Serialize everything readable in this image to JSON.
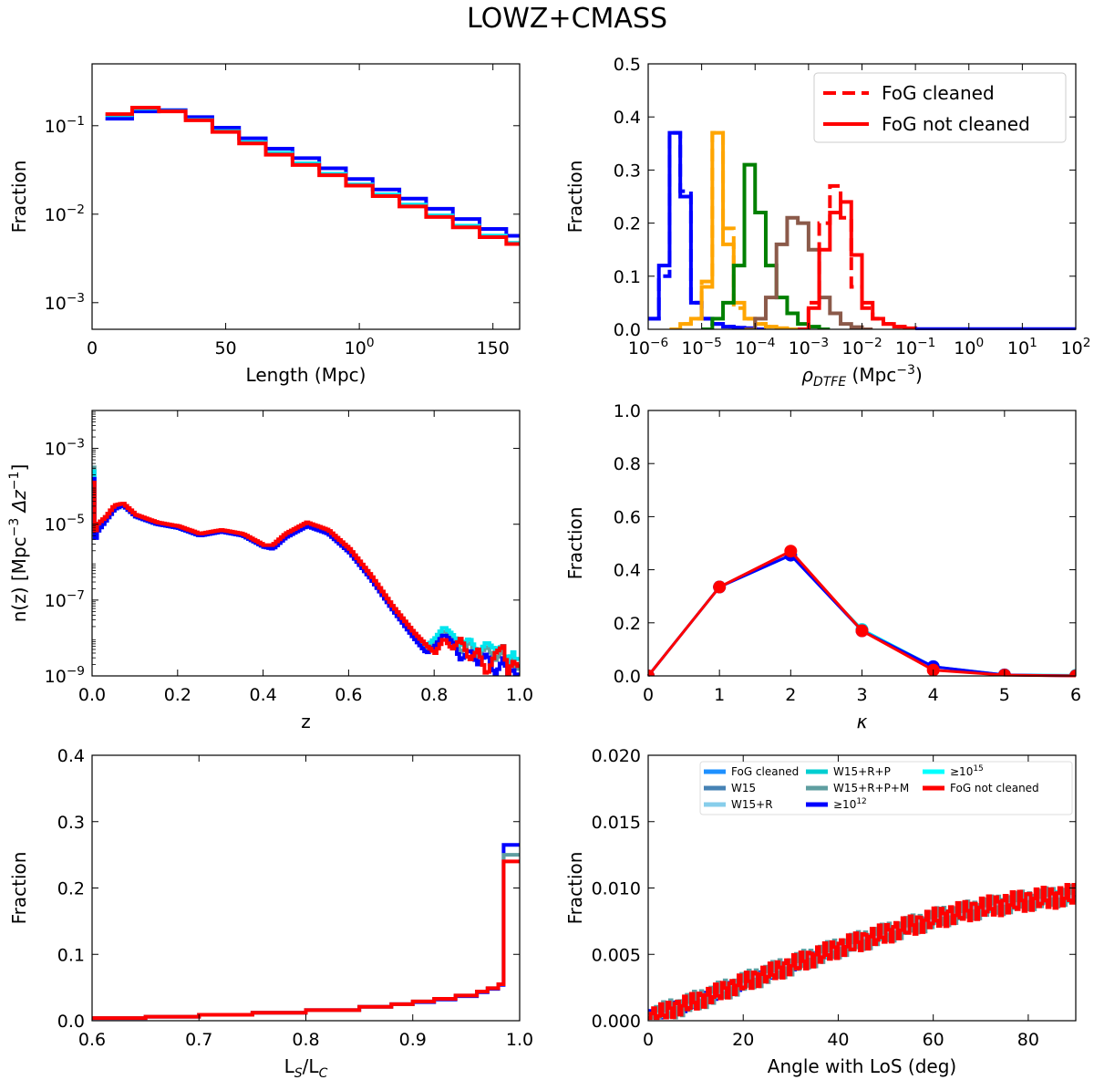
{
  "figure": {
    "title": "LOWZ+CMASS"
  },
  "colors": {
    "red": "#ff0000",
    "blue": "#0000ff",
    "cyan": "#00e5ee",
    "teal": "#5f9ea0",
    "orange": "#ffa500",
    "green": "#008000",
    "brown": "#8b5a4a",
    "fog_cleaned": "#1e90ff",
    "w15": "#4682b4",
    "w15r": "#87ceeb",
    "w15rp": "#00ced1",
    "w15rpm": "#5f9ea0",
    "ge12": "#0000ff",
    "ge15": "#00ffff"
  },
  "chart_data": [
    {
      "id": "length",
      "type": "step",
      "title": "",
      "xlabel": "Length (Mpc)",
      "ylabel": "Fraction",
      "xscale": "linear",
      "yscale": "log",
      "xlim": [
        0,
        160
      ],
      "ylim": [
        0.0005,
        0.5
      ],
      "xticks": [
        0,
        50,
        100,
        150
      ],
      "xticklabels": [
        "0",
        "50",
        "100",
        "150"
      ],
      "yticks": [
        0.001,
        0.01,
        0.1
      ],
      "yticklabels": [
        "10−3",
        "10−2",
        "10−1"
      ],
      "bin_edges": [
        5,
        15,
        25,
        35,
        45,
        55,
        65,
        75,
        85,
        95,
        105,
        115,
        125,
        135,
        145,
        155,
        160
      ],
      "series": [
        {
          "name": "≥10^12",
          "color": "blue",
          "width": 4,
          "values": [
            0.12,
            0.145,
            0.15,
            0.125,
            0.095,
            0.072,
            0.055,
            0.043,
            0.033,
            0.025,
            0.019,
            0.015,
            0.0115,
            0.0088,
            0.0068,
            0.0057
          ]
        },
        {
          "name": "W15+R+P+M",
          "color": "cyan",
          "width": 3,
          "values": [
            0.13,
            0.155,
            0.148,
            0.118,
            0.088,
            0.066,
            0.05,
            0.038,
            0.029,
            0.022,
            0.017,
            0.013,
            0.0098,
            0.0075,
            0.0058,
            0.0048
          ]
        },
        {
          "name": "FoG not cleaned",
          "color": "red",
          "width": 4,
          "values": [
            0.135,
            0.16,
            0.145,
            0.115,
            0.085,
            0.063,
            0.047,
            0.036,
            0.0275,
            0.021,
            0.016,
            0.0122,
            0.0093,
            0.0071,
            0.0055,
            0.0046
          ]
        }
      ]
    },
    {
      "id": "density",
      "type": "step",
      "title": "",
      "xlabel": "ρDTFE (Mpc−3)",
      "ylabel": "Fraction",
      "xscale": "log",
      "yscale": "linear",
      "xlim": [
        -6,
        2
      ],
      "ylim": [
        0,
        0.5
      ],
      "xticks": [
        -6,
        -5,
        -4,
        -3,
        -2,
        -1,
        0,
        1,
        2
      ],
      "xticklabels": [
        "10−6",
        "10−5",
        "10−4",
        "10−3",
        "10−2",
        "10−1",
        "100",
        "101",
        "102"
      ],
      "yticks": [
        0,
        0.1,
        0.2,
        0.3,
        0.4,
        0.5
      ],
      "yticklabels": [
        "0.0",
        "0.1",
        "0.2",
        "0.3",
        "0.4",
        "0.5"
      ],
      "legend": {
        "position": "top-right",
        "entries": [
          {
            "label": "FoG cleaned",
            "style": "dashed"
          },
          {
            "label": "FoG not cleaned",
            "style": "solid"
          }
        ]
      },
      "bin_width_log": 0.2,
      "series": [
        {
          "name": "blue",
          "color": "blue",
          "start_log": -6.0,
          "values": [
            0.02,
            0.12,
            0.37,
            0.25,
            0.05,
            0.02,
            0.01,
            0.005,
            0.003,
            0.002,
            0.0
          ]
        },
        {
          "name": "blue dashed",
          "color": "blue",
          "dashed": true,
          "start_log": -6.0,
          "values": [
            0.02,
            0.1,
            0.37,
            0.26,
            0.05,
            0.02,
            0.01,
            0.005,
            0.003,
            0.002,
            0.0
          ]
        },
        {
          "name": "orange",
          "color": "orange",
          "start_log": -5.6,
          "values": [
            0.0,
            0.01,
            0.02,
            0.08,
            0.37,
            0.16,
            0.05,
            0.02,
            0.01,
            0.005,
            0.002,
            0.0
          ]
        },
        {
          "name": "orange dashed",
          "color": "orange",
          "dashed": true,
          "start_log": -5.6,
          "values": [
            0.0,
            0.01,
            0.02,
            0.09,
            0.37,
            0.19,
            0.04,
            0.02,
            0.01,
            0.005,
            0.002,
            0.0
          ]
        },
        {
          "name": "green",
          "color": "green",
          "start_log": -5.0,
          "values": [
            0.0,
            0.02,
            0.05,
            0.12,
            0.31,
            0.22,
            0.12,
            0.06,
            0.03,
            0.01,
            0.005,
            0.0
          ]
        },
        {
          "name": "brown",
          "color": "brown",
          "start_log": -4.2,
          "values": [
            0.0,
            0.02,
            0.06,
            0.16,
            0.21,
            0.2,
            0.15,
            0.06,
            0.03,
            0.01,
            0.004,
            0.0
          ]
        },
        {
          "name": "red",
          "color": "red",
          "start_log": -3.2,
          "values": [
            0.0,
            0.04,
            0.15,
            0.22,
            0.24,
            0.14,
            0.05,
            0.02,
            0.01,
            0.005,
            0.002,
            0.0
          ]
        },
        {
          "name": "red dashed",
          "color": "red",
          "dashed": true,
          "start_log": -3.2,
          "values": [
            0.0,
            0.05,
            0.2,
            0.27,
            0.21,
            0.08,
            0.04,
            0.02,
            0.01,
            0.005,
            0.002,
            0.0
          ]
        },
        {
          "name": "blue tail",
          "color": "blue",
          "start_log": -1.0,
          "values": [
            0.0005,
            0.0005,
            0.0005,
            0.0005,
            0.0005,
            0.0005,
            0.0005,
            0.0005,
            0.0005,
            0.0005,
            0.0005,
            0.0005,
            0.0005,
            0.0005,
            0.0005
          ]
        }
      ]
    },
    {
      "id": "nz",
      "type": "step",
      "title": "",
      "xlabel": "z",
      "ylabel": "n(z) [Mpc−3 Δz−1]",
      "xscale": "linear",
      "yscale": "log",
      "xlim": [
        0,
        1
      ],
      "ylim": [
        -9,
        -2
      ],
      "xticks": [
        0,
        0.2,
        0.4,
        0.6,
        0.8,
        1.0
      ],
      "xticklabels": [
        "0.0",
        "0.2",
        "0.4",
        "0.6",
        "0.8",
        "1.0"
      ],
      "yticks": [
        -9,
        -7,
        -5,
        -3
      ],
      "yticklabels": [
        "10−9",
        "10−7",
        "10−5",
        "10−3"
      ],
      "x": [
        0.0,
        0.005,
        0.01,
        0.03,
        0.05,
        0.07,
        0.1,
        0.15,
        0.2,
        0.25,
        0.3,
        0.35,
        0.4,
        0.42,
        0.45,
        0.5,
        0.55,
        0.6,
        0.65,
        0.7,
        0.75,
        0.78,
        0.8,
        0.82,
        0.84,
        0.86,
        0.88,
        0.9,
        0.92,
        0.94,
        0.96,
        0.97,
        0.98,
        0.99,
        1.0
      ],
      "series": [
        {
          "name": "W15+R+P+M",
          "color": "teal",
          "logy": [
            -3.5,
            -5.3,
            -5.1,
            -4.9,
            -4.6,
            -4.5,
            -4.8,
            -5.0,
            -5.1,
            -5.3,
            -5.2,
            -5.3,
            -5.6,
            -5.6,
            -5.3,
            -5.0,
            -5.2,
            -5.7,
            -6.4,
            -7.2,
            -7.9,
            -8.3,
            -8.1,
            -7.8,
            -8.0,
            -8.4,
            -8.1,
            -8.5,
            -8.2,
            -8.6,
            -8.3,
            -9.0,
            -8.4,
            -8.9,
            -8.7
          ]
        },
        {
          "name": "W15+R",
          "color": "cyan",
          "logy": [
            -3.6,
            -5.4,
            -5.1,
            -4.8,
            -4.6,
            -4.5,
            -4.8,
            -5.0,
            -5.1,
            -5.3,
            -5.2,
            -5.3,
            -5.6,
            -5.6,
            -5.3,
            -5.0,
            -5.2,
            -5.7,
            -6.4,
            -7.2,
            -7.9,
            -8.2,
            -8.0,
            -7.7,
            -7.9,
            -8.2,
            -8.0,
            -8.4,
            -8.1,
            -8.3,
            -8.2,
            -8.8,
            -8.3,
            -8.6,
            -8.5
          ]
        },
        {
          "name": "≥10^12",
          "color": "blue",
          "logy": [
            -3.8,
            -5.4,
            -5.2,
            -4.9,
            -4.6,
            -4.5,
            -4.8,
            -5.0,
            -5.1,
            -5.3,
            -5.2,
            -5.3,
            -5.6,
            -5.65,
            -5.35,
            -5.05,
            -5.25,
            -5.75,
            -6.45,
            -7.25,
            -8.0,
            -8.4,
            -8.2,
            -7.9,
            -8.1,
            -8.6,
            -8.3,
            -8.7,
            -8.4,
            -9.0,
            -8.5,
            -9.0,
            -8.8,
            -9.0,
            -8.9
          ]
        },
        {
          "name": "FoG not cleaned",
          "color": "red",
          "logy": [
            -3.9,
            -5.2,
            -5.0,
            -4.8,
            -4.5,
            -4.45,
            -4.75,
            -4.95,
            -5.05,
            -5.25,
            -5.15,
            -5.25,
            -5.55,
            -5.55,
            -5.25,
            -4.95,
            -5.15,
            -5.65,
            -6.35,
            -7.15,
            -7.85,
            -8.2,
            -8.4,
            -8.0,
            -8.3,
            -8.0,
            -8.6,
            -8.3,
            -9.0,
            -8.4,
            -8.2,
            -9.0,
            -8.6,
            -8.7,
            -8.8
          ]
        }
      ]
    },
    {
      "id": "kappa",
      "type": "line",
      "title": "",
      "xlabel": "κ",
      "ylabel": "Fraction",
      "xscale": "linear",
      "yscale": "linear",
      "xlim": [
        0,
        6
      ],
      "ylim": [
        0,
        1
      ],
      "xticks": [
        0,
        1,
        2,
        3,
        4,
        5,
        6
      ],
      "xticklabels": [
        "0",
        "1",
        "2",
        "3",
        "4",
        "5",
        "6"
      ],
      "yticks": [
        0,
        0.2,
        0.4,
        0.6,
        0.8,
        1.0
      ],
      "yticklabels": [
        "0.0",
        "0.2",
        "0.4",
        "0.6",
        "0.8",
        "1.0"
      ],
      "x": [
        0,
        1,
        2,
        3,
        4,
        5,
        6
      ],
      "series": [
        {
          "name": "cyan",
          "color": "cyan",
          "values": [
            0.0,
            0.335,
            0.455,
            0.175,
            0.035,
            0.004,
            0.002
          ]
        },
        {
          "name": "≥10^12",
          "color": "blue",
          "values": [
            0.0,
            0.335,
            0.455,
            0.17,
            0.035,
            0.004,
            0.0
          ]
        },
        {
          "name": "FoG not cleaned",
          "color": "red",
          "values": [
            0.0,
            0.335,
            0.47,
            0.17,
            0.022,
            0.003,
            0.0
          ]
        }
      ]
    },
    {
      "id": "ratio",
      "type": "step",
      "title": "",
      "xlabel": "LS/LC",
      "ylabel": "Fraction",
      "xscale": "linear",
      "yscale": "linear",
      "xlim": [
        0.6,
        1.0
      ],
      "ylim": [
        0,
        0.4
      ],
      "xticks": [
        0.6,
        0.7,
        0.8,
        0.9,
        1.0
      ],
      "xticklabels": [
        "0.6",
        "0.7",
        "0.8",
        "0.9",
        "1.0"
      ],
      "yticks": [
        0,
        0.1,
        0.2,
        0.3,
        0.4
      ],
      "yticklabels": [
        "0.0",
        "0.1",
        "0.2",
        "0.3",
        "0.4"
      ],
      "x": [
        0.6,
        0.65,
        0.7,
        0.75,
        0.8,
        0.85,
        0.88,
        0.9,
        0.92,
        0.94,
        0.96,
        0.97,
        0.98,
        0.985,
        0.99,
        0.995,
        1.0
      ],
      "series": [
        {
          "name": "≥10^12",
          "color": "blue",
          "values": [
            0.004,
            0.006,
            0.009,
            0.012,
            0.016,
            0.021,
            0.025,
            0.028,
            0.032,
            0.037,
            0.043,
            0.048,
            0.054,
            0.265,
            0.265,
            0.265,
            0.265
          ]
        },
        {
          "name": "W15+R+P+M",
          "color": "teal",
          "values": [
            0.004,
            0.006,
            0.009,
            0.012,
            0.016,
            0.021,
            0.025,
            0.029,
            0.033,
            0.038,
            0.044,
            0.049,
            0.055,
            0.25,
            0.25,
            0.25,
            0.25
          ]
        },
        {
          "name": "FoG not cleaned",
          "color": "red",
          "values": [
            0.004,
            0.006,
            0.009,
            0.012,
            0.016,
            0.021,
            0.025,
            0.029,
            0.033,
            0.038,
            0.044,
            0.049,
            0.055,
            0.24,
            0.24,
            0.24,
            0.24
          ]
        }
      ]
    },
    {
      "id": "angle",
      "type": "step",
      "title": "",
      "xlabel": "Angle with LoS (deg)",
      "ylabel": "Fraction",
      "xscale": "linear",
      "yscale": "linear",
      "xlim": [
        0,
        90
      ],
      "ylim": [
        0,
        0.02
      ],
      "xticks": [
        0,
        20,
        40,
        60,
        80
      ],
      "xticklabels": [
        "0",
        "20",
        "40",
        "60",
        "80"
      ],
      "yticks": [
        0,
        0.005,
        0.01,
        0.015,
        0.02
      ],
      "yticklabels": [
        "0.000",
        "0.005",
        "0.010",
        "0.015",
        "0.020"
      ],
      "legend": {
        "position": "top-right",
        "entries": [
          {
            "label": "FoG cleaned",
            "color": "fog_cleaned"
          },
          {
            "label": "W15",
            "color": "w15"
          },
          {
            "label": "W15+R",
            "color": "w15r"
          },
          {
            "label": "W15+R+P",
            "color": "w15rp"
          },
          {
            "label": "W15+R+P+M",
            "color": "w15rpm"
          },
          {
            "label": "≥1012",
            "color": "ge12"
          },
          {
            "label": "≥1015",
            "color": "ge15"
          },
          {
            "label": "FoG not cleaned",
            "color": "red"
          }
        ]
      },
      "trend": {
        "x": [
          0,
          10,
          20,
          30,
          40,
          50,
          60,
          70,
          80,
          90
        ],
        "y": [
          0.0003,
          0.0015,
          0.0029,
          0.0042,
          0.0055,
          0.0066,
          0.0077,
          0.0085,
          0.0091,
          0.0095
        ]
      },
      "series": [
        {
          "name": "≥10^12",
          "color": "ge12",
          "phase": 0.3,
          "amp": 0.0011
        },
        {
          "name": "≥10^15",
          "color": "ge15",
          "phase": 1.7,
          "amp": 0.0009
        },
        {
          "name": "W15+R+P+M",
          "color": "w15rpm",
          "phase": 2.9,
          "amp": 0.0008
        },
        {
          "name": "W15+R",
          "color": "w15r",
          "phase": 4.1,
          "amp": 0.0008
        },
        {
          "name": "FoG not cleaned",
          "color": "red",
          "phase": 5.3,
          "amp": 0.001
        }
      ]
    }
  ]
}
